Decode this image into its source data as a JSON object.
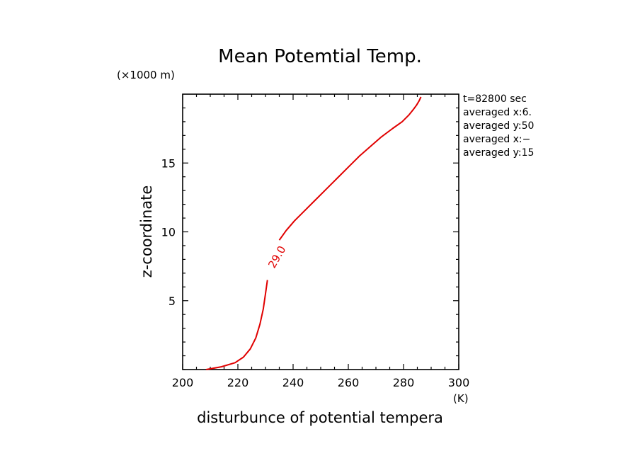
{
  "chart_data": {
    "type": "line",
    "title": "Mean Potemtial Temp.",
    "xlabel": "disturbunce of potential tempera",
    "ylabel": "z-coordinate",
    "x_unit": "(K)",
    "y_unit": "(×1000 m)",
    "xlim": [
      200,
      300
    ],
    "ylim": [
      0,
      20
    ],
    "xticks": [
      200,
      220,
      240,
      260,
      280,
      300
    ],
    "yticks": [
      5,
      10,
      15
    ],
    "contour_label": "29.0",
    "series": [
      {
        "color": "#e00000",
        "x": [
          208.5,
          214,
          219,
          222,
          224.5,
          226.5,
          228,
          229.2,
          230,
          230.7,
          231.4,
          232.2,
          233.3,
          235,
          237.5,
          240.5,
          244,
          248,
          252,
          256,
          260,
          264,
          268,
          272,
          276,
          279.5,
          282,
          283.6,
          284.7,
          285.6,
          286.3
        ],
        "y": [
          0,
          0.2,
          0.5,
          0.9,
          1.5,
          2.3,
          3.3,
          4.4,
          5.5,
          6.5,
          7.5,
          8.2,
          8.8,
          9.4,
          10.1,
          10.8,
          11.5,
          12.3,
          13.1,
          13.9,
          14.7,
          15.5,
          16.2,
          16.9,
          17.5,
          18.0,
          18.5,
          18.9,
          19.2,
          19.5,
          19.8
        ]
      }
    ],
    "annotations": [
      "t=82800 sec",
      "averaged  x:6.",
      "averaged  y:50",
      "averaged  x:−",
      "averaged  y:15"
    ]
  }
}
